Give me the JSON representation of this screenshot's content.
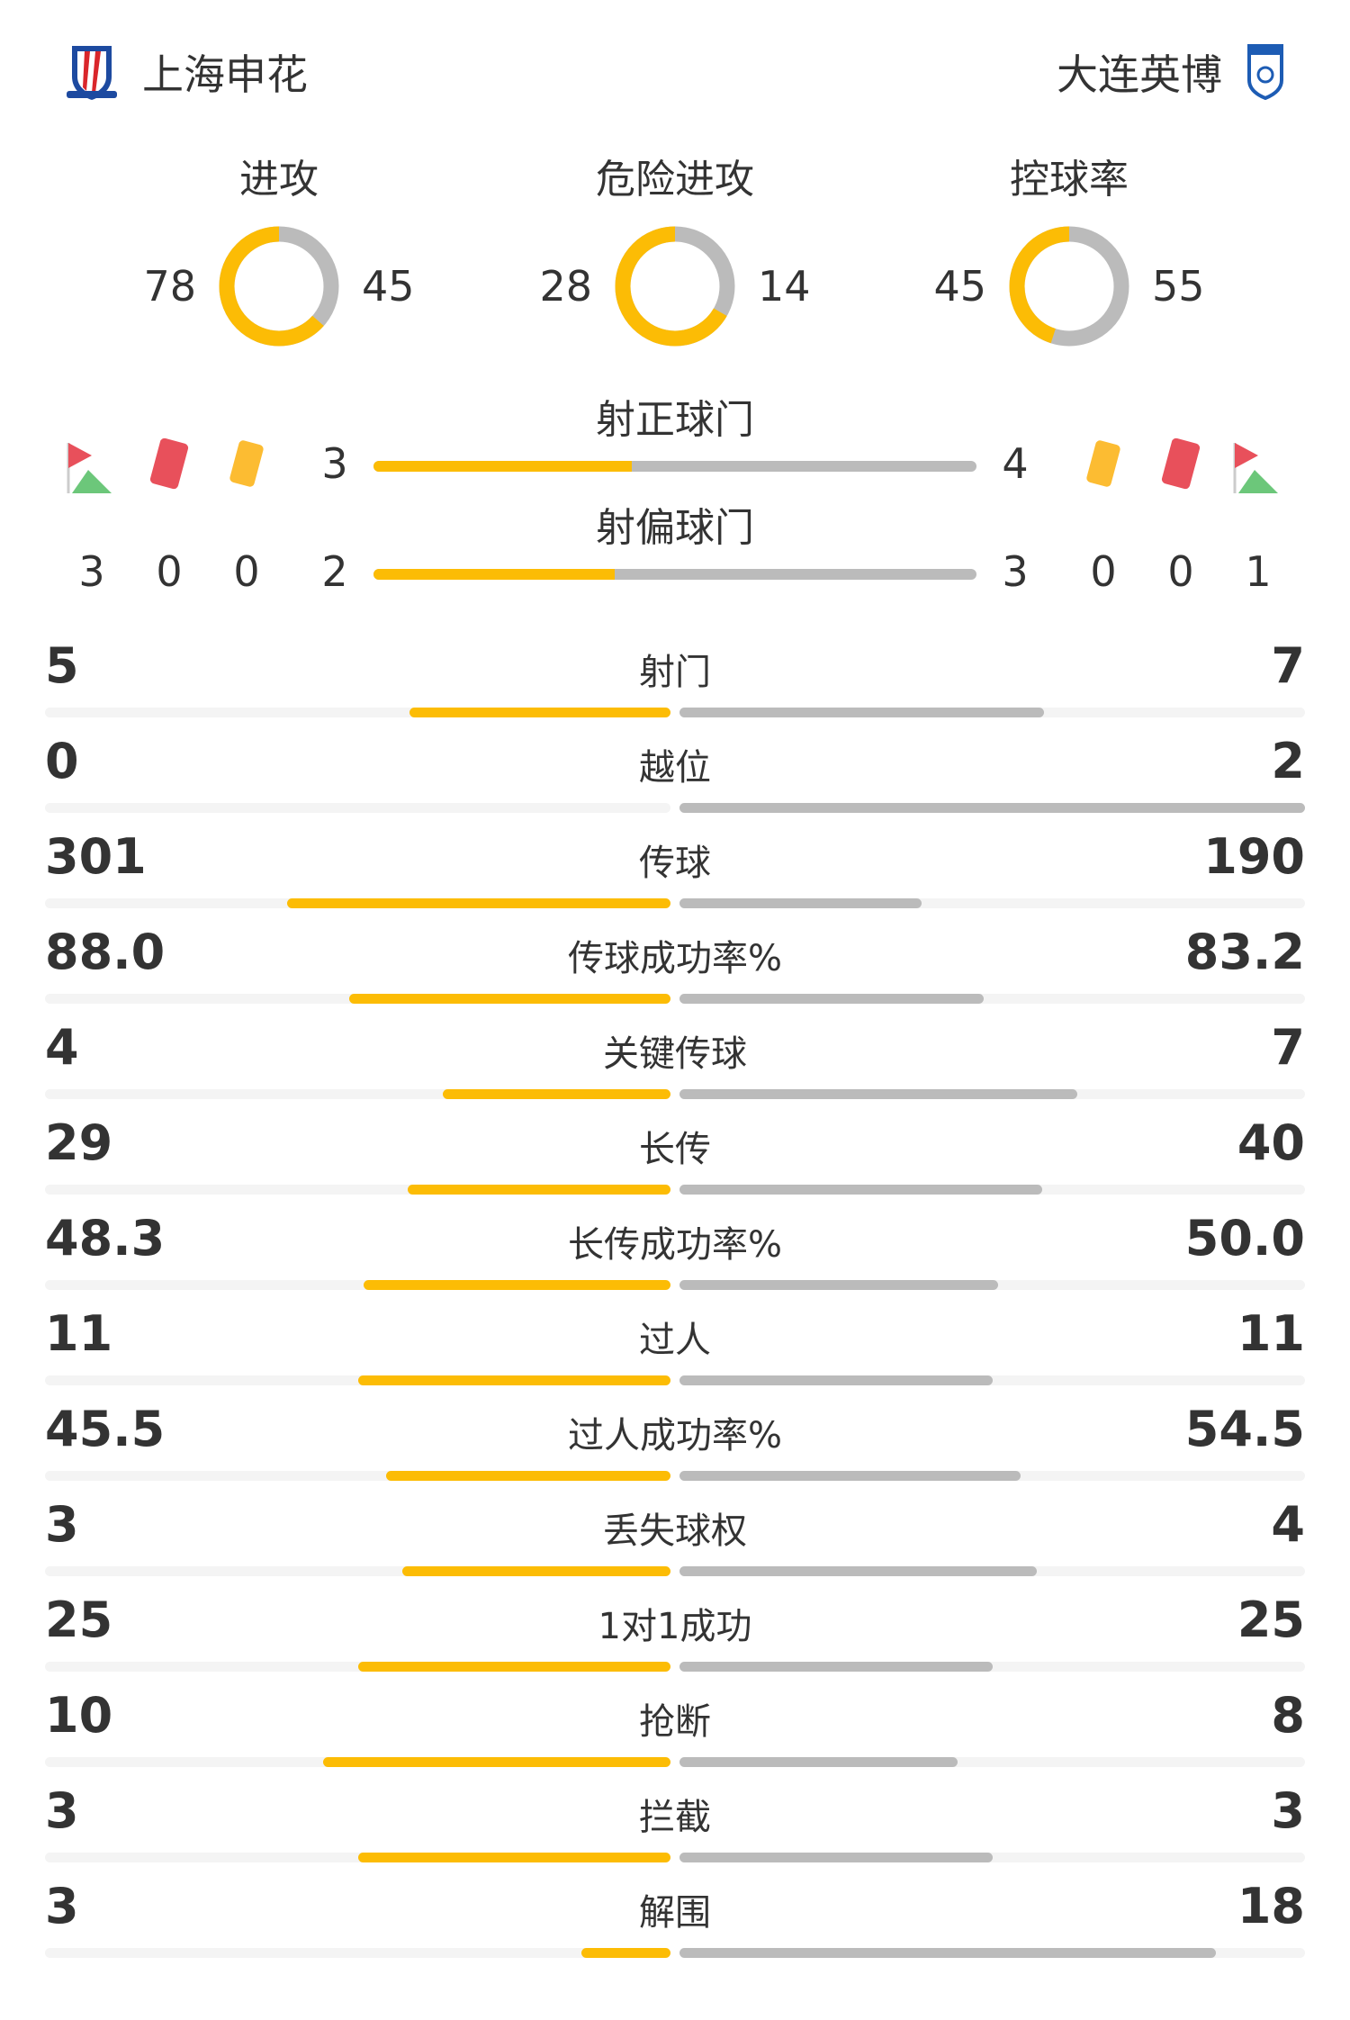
{
  "home": {
    "name": "上海申花",
    "logo": "shanghai-shenhua-crest"
  },
  "away": {
    "name": "大连英博",
    "logo": "dalian-yingbo-crest"
  },
  "colors": {
    "home": "#fcbc05",
    "away": "#bbbbbb",
    "track": "#f4f4f4",
    "red_card": "#e8505b",
    "yellow_card": "#fcbc32",
    "corner": "#6cc77a"
  },
  "donuts": [
    {
      "label": "进攻",
      "home": 78,
      "away": 45
    },
    {
      "label": "危险进攻",
      "home": 28,
      "away": 14
    },
    {
      "label": "控球率",
      "home": 45,
      "away": 55
    }
  ],
  "on_target": {
    "label": "射正球门",
    "home": 3,
    "away": 4
  },
  "off_target": {
    "label": "射偏球门",
    "home": 2,
    "away": 3
  },
  "events": {
    "home": {
      "corners": 3,
      "red_cards": 0,
      "yellow_cards": 0
    },
    "away": {
      "yellow_cards": 0,
      "red_cards": 0,
      "corners": 1
    }
  },
  "stats": [
    {
      "label": "射门",
      "home": "5",
      "away": "7"
    },
    {
      "label": "越位",
      "home": "0",
      "away": "2"
    },
    {
      "label": "传球",
      "home": "301",
      "away": "190"
    },
    {
      "label": "传球成功率%",
      "home": "88.0",
      "away": "83.2"
    },
    {
      "label": "关键传球",
      "home": "4",
      "away": "7"
    },
    {
      "label": "长传",
      "home": "29",
      "away": "40"
    },
    {
      "label": "长传成功率%",
      "home": "48.3",
      "away": "50.0"
    },
    {
      "label": "过人",
      "home": "11",
      "away": "11"
    },
    {
      "label": "过人成功率%",
      "home": "45.5",
      "away": "54.5"
    },
    {
      "label": "丢失球权",
      "home": "3",
      "away": "4"
    },
    {
      "label": "1对1成功",
      "home": "25",
      "away": "25"
    },
    {
      "label": "抢断",
      "home": "10",
      "away": "8"
    },
    {
      "label": "拦截",
      "home": "3",
      "away": "3"
    },
    {
      "label": "解围",
      "home": "3",
      "away": "18"
    }
  ]
}
